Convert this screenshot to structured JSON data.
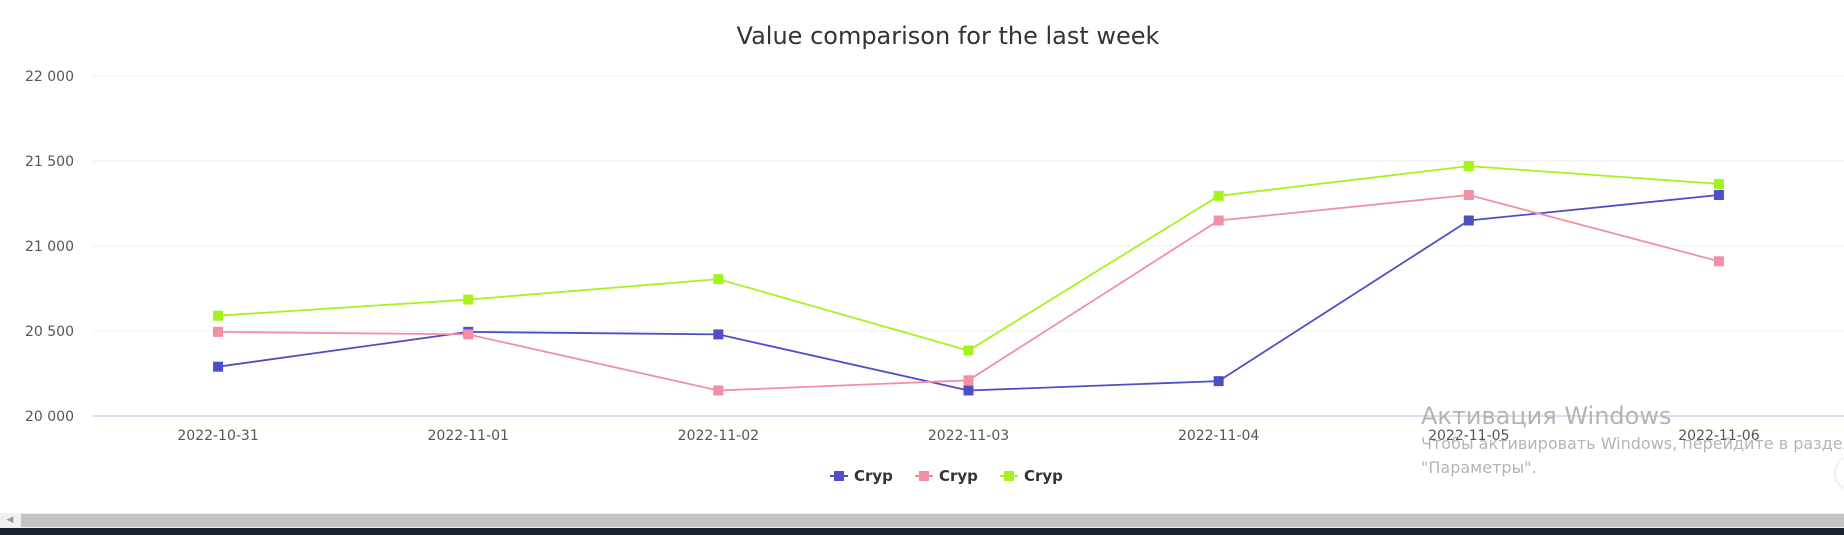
{
  "chart_data": {
    "type": "line",
    "title": "Value comparison for the last week",
    "xlabel": "",
    "ylabel": "",
    "categories": [
      "2022-10-31",
      "2022-11-01",
      "2022-11-02",
      "2022-11-03",
      "2022-11-04",
      "2022-11-05",
      "2022-11-06"
    ],
    "y_ticks": [
      "20 000",
      "20 500",
      "21 000",
      "21 500",
      "22 000"
    ],
    "ylim": [
      20000,
      22000
    ],
    "grid": true,
    "legend_position": "bottom-center",
    "series": [
      {
        "name": "Cryp",
        "color": "#4e4fc6",
        "values": [
          20290,
          20495,
          20480,
          20150,
          20205,
          21150,
          21300
        ]
      },
      {
        "name": "Cryp",
        "color": "#f28fa5",
        "values": [
          20495,
          20480,
          20150,
          20210,
          21150,
          21300,
          20910
        ]
      },
      {
        "name": "Cryp",
        "color": "#a6f21c",
        "values": [
          20590,
          20685,
          20805,
          20385,
          21295,
          21470,
          21365
        ]
      }
    ]
  },
  "watermark": {
    "title": "Активация Windows",
    "line1": "Чтобы активировать Windows, перейдите в раздел",
    "line2": "\"Параметры\"."
  },
  "scrollbar": {
    "left_arrow_icon": "caret-left-icon"
  }
}
